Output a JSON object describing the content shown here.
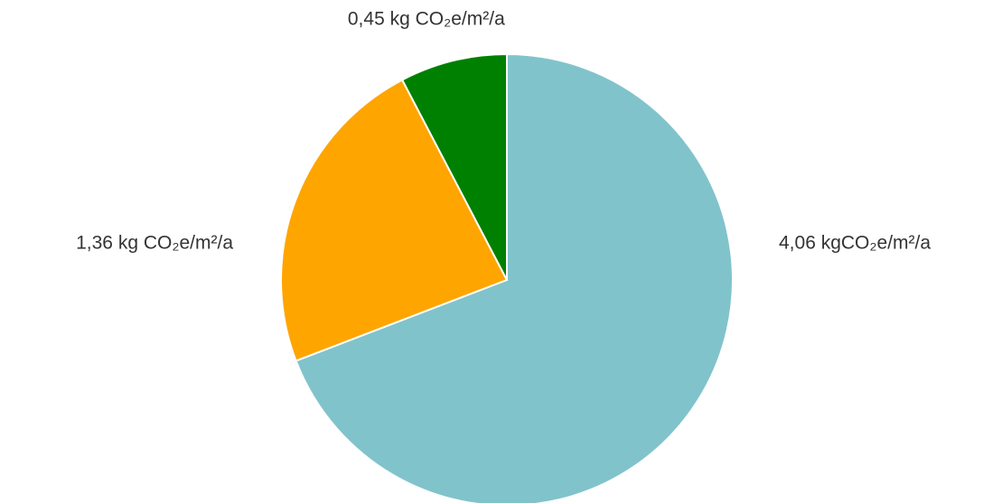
{
  "chart_data": {
    "type": "pie",
    "values": [
      4.06,
      1.36,
      0.45
    ],
    "value_labels": [
      "4,06 kgCO₂e/m²/a",
      "1,36 kg CO₂e/m²/a",
      "0,45 kg CO₂e/m²/a"
    ],
    "colors": [
      "#81c3cb",
      "#ffa500",
      "#008000"
    ]
  }
}
